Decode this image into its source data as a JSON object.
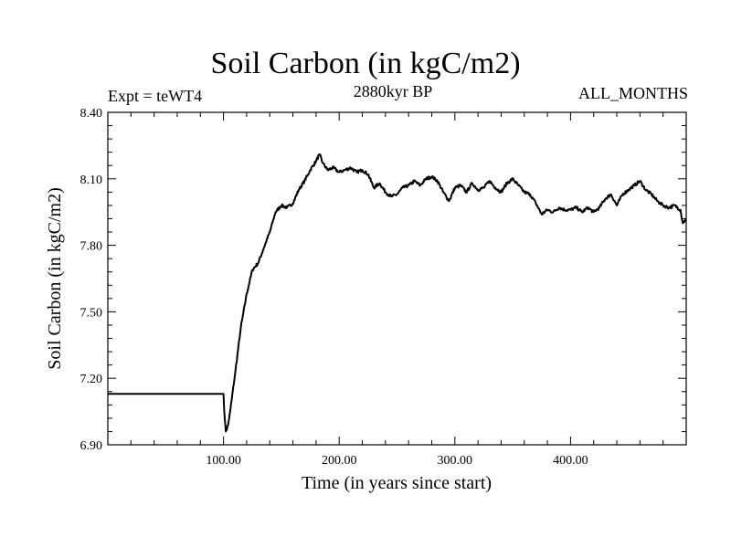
{
  "header": {
    "title": "Soil Carbon (in kgC/m2)",
    "left_label": "Expt = teWT4",
    "center_label": "2880kyr BP",
    "right_label": "ALL_MONTHS"
  },
  "colors": {
    "line": "#000000",
    "axis": "#000000",
    "background": "#ffffff"
  },
  "chart_data": {
    "type": "line",
    "title": "Soil Carbon (in kgC/m2)",
    "xlabel": "Time (in years since start)",
    "ylabel": "Soil Carbon (in kgC/m2)",
    "xlim": [
      0,
      500
    ],
    "ylim": [
      6.9,
      8.4
    ],
    "xticks": [
      100,
      200,
      300,
      400
    ],
    "xtick_labels": [
      "100.00",
      "200.00",
      "300.00",
      "400.00"
    ],
    "yticks": [
      6.9,
      7.2,
      7.5,
      7.8,
      8.1,
      8.4
    ],
    "ytick_labels": [
      "6.90",
      "7.20",
      "7.50",
      "7.80",
      "8.10",
      "8.40"
    ],
    "grid": false,
    "series": [
      {
        "name": "Soil Carbon",
        "x": [
          0,
          100,
          101,
          102,
          104,
          106,
          110,
          115,
          120,
          125,
          130,
          135,
          140,
          145,
          150,
          155,
          160,
          165,
          170,
          175,
          180,
          183,
          186,
          190,
          195,
          200,
          205,
          210,
          215,
          220,
          225,
          230,
          235,
          240,
          245,
          250,
          255,
          260,
          265,
          270,
          275,
          280,
          285,
          290,
          295,
          300,
          305,
          310,
          315,
          320,
          325,
          330,
          335,
          340,
          345,
          350,
          355,
          360,
          365,
          370,
          375,
          380,
          385,
          390,
          395,
          400,
          405,
          410,
          415,
          420,
          425,
          430,
          435,
          440,
          445,
          450,
          455,
          460,
          465,
          470,
          475,
          480,
          485,
          490,
          495,
          497,
          500
        ],
        "y": [
          7.13,
          7.13,
          7.02,
          6.96,
          6.99,
          7.06,
          7.22,
          7.43,
          7.58,
          7.69,
          7.72,
          7.79,
          7.86,
          7.95,
          7.98,
          7.97,
          7.99,
          8.05,
          8.09,
          8.14,
          8.18,
          8.21,
          8.17,
          8.14,
          8.15,
          8.13,
          8.14,
          8.15,
          8.13,
          8.14,
          8.12,
          8.06,
          8.08,
          8.04,
          8.02,
          8.03,
          8.06,
          8.07,
          8.09,
          8.07,
          8.1,
          8.11,
          8.09,
          8.04,
          8.0,
          8.06,
          8.07,
          8.04,
          8.08,
          8.05,
          8.06,
          8.09,
          8.06,
          8.04,
          8.08,
          8.1,
          8.07,
          8.04,
          8.03,
          7.99,
          7.94,
          7.96,
          7.95,
          7.97,
          7.96,
          7.96,
          7.97,
          7.95,
          7.97,
          7.95,
          7.97,
          8.01,
          8.03,
          7.98,
          8.03,
          8.05,
          8.07,
          8.09,
          8.05,
          8.03,
          8.0,
          7.98,
          7.97,
          7.98,
          7.96,
          7.9,
          7.92
        ]
      }
    ]
  }
}
